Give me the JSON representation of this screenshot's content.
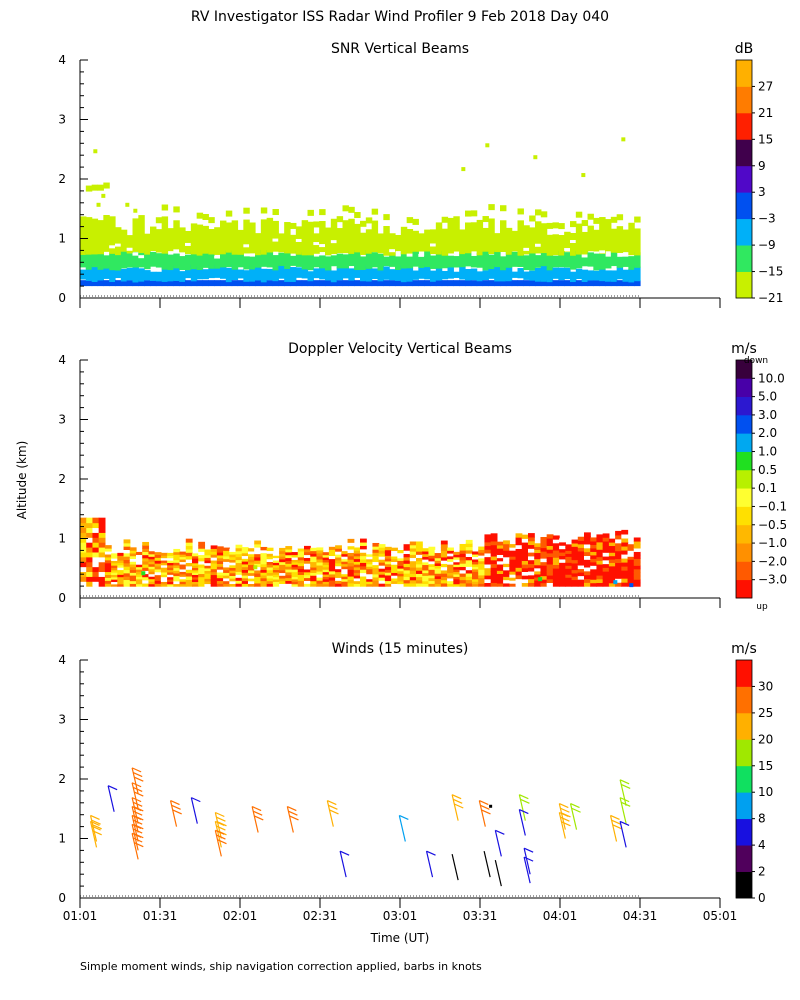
{
  "title": "RV Investigator ISS Radar Wind Profiler   9 Feb 2018 Day 040",
  "ylabel": "Altitude (km)",
  "xlabel": "Time (UT)",
  "footnote": "Simple moment winds, ship navigation correction applied, barbs in knots",
  "x_ticks": [
    "01:01",
    "01:31",
    "02:01",
    "02:31",
    "03:01",
    "03:31",
    "04:01",
    "04:31",
    "05:01"
  ],
  "y_ticks": [
    "0",
    "1",
    "2",
    "3",
    "4"
  ],
  "chart_data": [
    {
      "type": "heatmap",
      "title": "SNR Vertical Beams",
      "xlabel": "Time (UT)",
      "ylabel": "Altitude (km)",
      "xlim_hours": [
        1.0167,
        5.0167
      ],
      "ylim": [
        0,
        4
      ],
      "data_end_hour": 4.5167,
      "colorbar": {
        "unit": "dB",
        "labels": [
          "27",
          "21",
          "15",
          "9",
          "3",
          "−3",
          "−9",
          "−15",
          "−21"
        ],
        "colors": [
          "#c8f000",
          "#30e860",
          "#00b0f8",
          "#0050f0",
          "#5008c8",
          "#40004c",
          "#ff2000",
          "#ff7c00",
          "#ffb000"
        ]
      },
      "layers": [
        {
          "from_km": 0.2,
          "to_km": 0.3,
          "color": "#0050f0"
        },
        {
          "from_km": 0.3,
          "to_km": 0.5,
          "color": "#00b0f8"
        },
        {
          "from_km": 0.5,
          "to_km": 0.75,
          "color": "#30e860"
        },
        {
          "from_km": 0.75,
          "to_km": 1.35,
          "color": "#c8f000"
        }
      ]
    },
    {
      "type": "heatmap",
      "title": "Doppler Velocity Vertical Beams",
      "xlabel": "Time (UT)",
      "ylabel": "Altitude (km)",
      "xlim_hours": [
        1.0167,
        5.0167
      ],
      "ylim": [
        0,
        4
      ],
      "data_end_hour": 4.5167,
      "colorbar": {
        "unit": "m/s",
        "top_label": "down",
        "bottom_label": "up",
        "labels": [
          "10.0",
          "5.0",
          "3.0",
          "2.0",
          "1.0",
          "0.5",
          "0.1",
          "−0.1",
          "−0.5",
          "−1.0",
          "−2.0",
          "−3.0"
        ],
        "colors": [
          "#ff1000",
          "#ff5a00",
          "#ff9000",
          "#ffb800",
          "#ffe000",
          "#ffff30",
          "#b8f000",
          "#20e020",
          "#00a8f0",
          "#0050f0",
          "#2c18d0",
          "#4800a8",
          "#38003c"
        ]
      },
      "layers": [
        {
          "from_km": 0.2,
          "to_km": 0.9,
          "color": "#ffb800"
        },
        {
          "from_km": 0.2,
          "to_km": 0.6,
          "color": "#ff5a00"
        }
      ]
    },
    {
      "type": "scatter",
      "title": "Winds (15 minutes)",
      "xlabel": "Time (UT)",
      "ylabel": "Altitude (km)",
      "xlim_hours": [
        1.0167,
        5.0167
      ],
      "ylim": [
        0,
        4
      ],
      "colorbar": {
        "unit": "m/s",
        "labels": [
          "0",
          "2",
          "4",
          "8",
          "10",
          "15",
          "20",
          "25",
          "30"
        ],
        "colors": [
          "#000000",
          "#50005c",
          "#1810e0",
          "#00a0f0",
          "#10e060",
          "#a0e800",
          "#ffb000",
          "#ff7000",
          "#ff1000"
        ]
      },
      "barbs": [
        {
          "t": 1.12,
          "alt": 0.95,
          "speed": 22
        },
        {
          "t": 1.12,
          "alt": 0.85,
          "speed": 22
        },
        {
          "t": 1.23,
          "alt": 1.45,
          "speed": 4
        },
        {
          "t": 1.38,
          "alt": 1.75,
          "speed": 25
        },
        {
          "t": 1.38,
          "alt": 1.5,
          "speed": 25
        },
        {
          "t": 1.38,
          "alt": 1.25,
          "speed": 25
        },
        {
          "t": 1.38,
          "alt": 1.1,
          "speed": 27
        },
        {
          "t": 1.38,
          "alt": 0.95,
          "speed": 27
        },
        {
          "t": 1.38,
          "alt": 0.8,
          "speed": 27
        },
        {
          "t": 1.38,
          "alt": 0.65,
          "speed": 25
        },
        {
          "t": 1.62,
          "alt": 1.2,
          "speed": 25
        },
        {
          "t": 1.75,
          "alt": 1.25,
          "speed": 4
        },
        {
          "t": 1.9,
          "alt": 1.0,
          "speed": 24
        },
        {
          "t": 1.9,
          "alt": 0.85,
          "speed": 24
        },
        {
          "t": 1.9,
          "alt": 0.7,
          "speed": 25
        },
        {
          "t": 2.13,
          "alt": 1.1,
          "speed": 25
        },
        {
          "t": 2.35,
          "alt": 1.1,
          "speed": 25
        },
        {
          "t": 2.6,
          "alt": 1.2,
          "speed": 24
        },
        {
          "t": 2.68,
          "alt": 0.35,
          "speed": 4
        },
        {
          "t": 3.05,
          "alt": 0.95,
          "speed": 9
        },
        {
          "t": 3.22,
          "alt": 0.35,
          "speed": 4
        },
        {
          "t": 3.38,
          "alt": 1.3,
          "speed": 22
        },
        {
          "t": 3.38,
          "alt": 0.3,
          "speed": 0
        },
        {
          "t": 3.55,
          "alt": 1.2,
          "speed": 25
        },
        {
          "t": 3.58,
          "alt": 0.35,
          "speed": 0
        },
        {
          "t": 3.65,
          "alt": 0.7,
          "speed": 4
        },
        {
          "t": 3.65,
          "alt": 0.2,
          "speed": 0
        },
        {
          "t": 3.8,
          "alt": 1.3,
          "speed": 15
        },
        {
          "t": 3.8,
          "alt": 1.05,
          "speed": 4
        },
        {
          "t": 3.83,
          "alt": 0.4,
          "speed": 4
        },
        {
          "t": 3.83,
          "alt": 0.25,
          "speed": 4
        },
        {
          "t": 4.05,
          "alt": 1.15,
          "speed": 24
        },
        {
          "t": 4.05,
          "alt": 1.0,
          "speed": 24
        },
        {
          "t": 4.12,
          "alt": 1.15,
          "speed": 15
        },
        {
          "t": 4.37,
          "alt": 0.95,
          "speed": 21
        },
        {
          "t": 4.43,
          "alt": 1.55,
          "speed": 18
        },
        {
          "t": 4.43,
          "alt": 1.25,
          "speed": 18
        },
        {
          "t": 4.43,
          "alt": 0.85,
          "speed": 4
        }
      ]
    }
  ]
}
